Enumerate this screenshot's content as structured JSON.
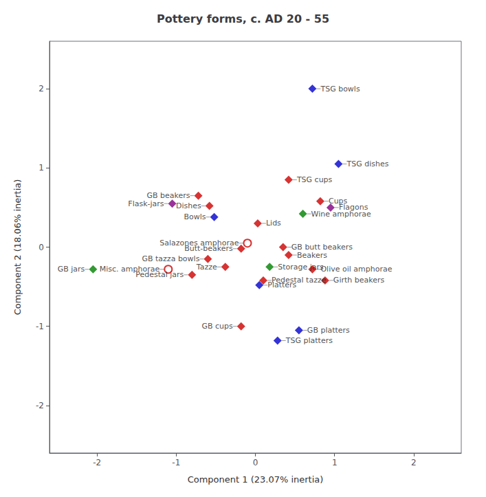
{
  "chart_data": {
    "type": "scatter",
    "title": "Pottery forms, c. AD 20 - 55",
    "xlabel": "Component 1 (23.07% inertia)",
    "ylabel": "Component 2 (18.06% inertia)",
    "xlim": [
      -2.6,
      2.6
    ],
    "ylim": [
      -2.6,
      2.6
    ],
    "xticks": [
      -2,
      -1,
      0,
      1,
      2
    ],
    "yticks": [
      -2,
      -1,
      0,
      1,
      2
    ],
    "grid": false,
    "series": [
      {
        "marker": "diamond",
        "labels": [
          "TSG bowls",
          "TSG dishes",
          "TSG cups",
          "Cups",
          "Flagons",
          "Wine amphorae",
          "GB beakers",
          "Flask-jars",
          "Dishes",
          "Bowls",
          "Lids",
          "GB butt beakers",
          "Butt-beakers",
          "Beakers",
          "GB tazza bowls",
          "Tazze",
          "Pedestal jars",
          "Storage jars",
          "Olive oil amphorae",
          "Pedestal tazze",
          "Platters",
          "Girth beakers",
          "GB jars",
          "GB cups",
          "GB platters",
          "TSG platters"
        ],
        "x": [
          0.72,
          1.05,
          0.42,
          0.82,
          0.95,
          0.6,
          -0.72,
          -1.05,
          -0.58,
          -0.52,
          0.03,
          0.35,
          -0.18,
          0.42,
          -0.6,
          -0.38,
          -0.8,
          0.18,
          0.72,
          0.1,
          0.05,
          0.88,
          -2.05,
          -0.18,
          0.55,
          0.28
        ],
        "values": [
          2.0,
          1.05,
          0.85,
          0.58,
          0.5,
          0.42,
          0.65,
          0.55,
          0.52,
          0.38,
          0.3,
          0.0,
          -0.02,
          -0.1,
          -0.15,
          -0.25,
          -0.35,
          -0.25,
          -0.28,
          -0.42,
          -0.48,
          -0.42,
          -0.28,
          -1.0,
          -1.05,
          -1.18
        ],
        "colors": [
          "#0000cc",
          "#0000cc",
          "#cc0000",
          "#cc0000",
          "#800080",
          "#008000",
          "#cc0000",
          "#800080",
          "#cc0000",
          "#0000cc",
          "#cc0000",
          "#cc0000",
          "#cc0000",
          "#cc0000",
          "#cc0000",
          "#cc0000",
          "#cc0000",
          "#008000",
          "#cc0000",
          "#cc0000",
          "#0000cc",
          "#cc0000",
          "#008000",
          "#cc0000",
          "#0000cc",
          "#0000cc"
        ]
      },
      {
        "marker": "open_circle",
        "labels": [
          "Salazones amphorae",
          "Misc. amphorae"
        ],
        "x": [
          -0.1,
          -1.1
        ],
        "values": [
          0.05,
          -0.28
        ],
        "colors": [
          "#cc0000",
          "#cc0000"
        ]
      }
    ]
  }
}
